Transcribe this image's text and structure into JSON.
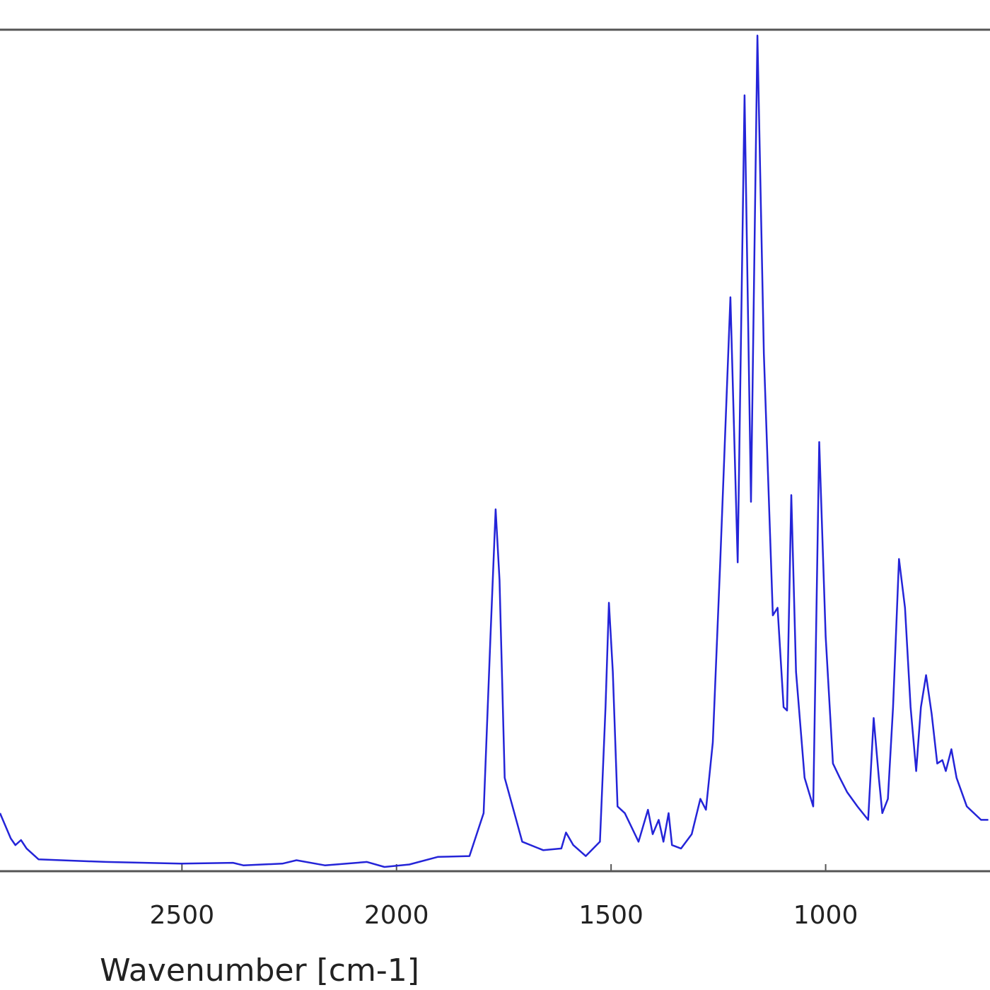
{
  "chart_data": {
    "type": "line",
    "x_label": "Wavenumber [cm-1]",
    "x": [
      2924,
      2899,
      2888,
      2875,
      2862,
      2834,
      2677,
      2500,
      2381,
      2357,
      2266,
      2233,
      2167,
      2069,
      2028,
      1970,
      1904,
      1830,
      1797,
      1781,
      1769,
      1760,
      1748,
      1707,
      1658,
      1616,
      1605,
      1588,
      1559,
      1526,
      1513,
      1505,
      1496,
      1485,
      1468,
      1436,
      1414,
      1403,
      1389,
      1378,
      1366,
      1358,
      1337,
      1312,
      1292,
      1279,
      1263,
      1246,
      1222,
      1205,
      1189,
      1174,
      1159,
      1144,
      1123,
      1112,
      1098,
      1090,
      1080,
      1069,
      1049,
      1029,
      1015,
      1000,
      983,
      967,
      950,
      926,
      901,
      888,
      876,
      868,
      855,
      843,
      829,
      815,
      802,
      789,
      778,
      766,
      753,
      740,
      728,
      720,
      707,
      695,
      671,
      638,
      621
    ],
    "values": [
      0.069,
      0.039,
      0.031,
      0.037,
      0.027,
      0.014,
      0.011,
      0.009,
      0.01,
      0.007,
      0.009,
      0.013,
      0.007,
      0.011,
      0.005,
      0.008,
      0.017,
      0.018,
      0.069,
      0.279,
      0.43,
      0.346,
      0.111,
      0.035,
      0.025,
      0.027,
      0.046,
      0.031,
      0.018,
      0.035,
      0.195,
      0.319,
      0.237,
      0.077,
      0.069,
      0.035,
      0.073,
      0.044,
      0.061,
      0.035,
      0.069,
      0.031,
      0.027,
      0.044,
      0.086,
      0.073,
      0.153,
      0.363,
      0.682,
      0.367,
      0.922,
      0.439,
      0.993,
      0.615,
      0.304,
      0.313,
      0.195,
      0.191,
      0.447,
      0.237,
      0.111,
      0.077,
      0.51,
      0.279,
      0.128,
      0.111,
      0.094,
      0.077,
      0.061,
      0.182,
      0.111,
      0.069,
      0.086,
      0.195,
      0.371,
      0.313,
      0.195,
      0.119,
      0.195,
      0.233,
      0.187,
      0.128,
      0.132,
      0.119,
      0.145,
      0.111,
      0.077,
      0.061,
      0.061
    ],
    "color": "#2424d8",
    "xlim": [
      2924,
      617
    ],
    "xticks": [
      2500,
      2000,
      1500,
      1000
    ],
    "ylim": [
      0,
      1
    ]
  }
}
